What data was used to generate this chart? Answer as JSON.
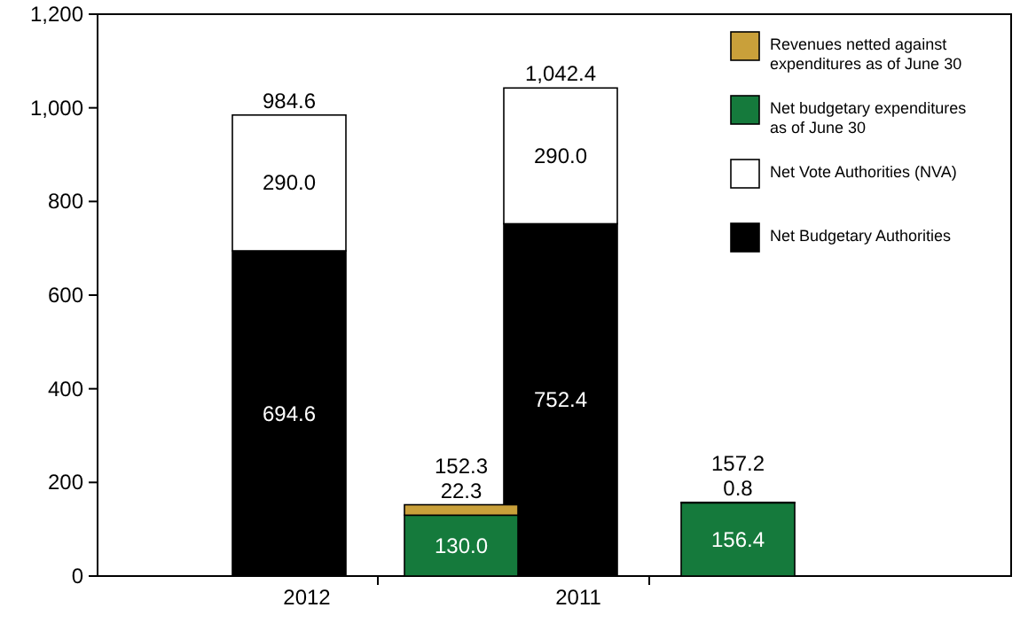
{
  "chart_data": {
    "type": "bar",
    "stacked": true,
    "categories": [
      "2012",
      null,
      "2011",
      null
    ],
    "series": [
      {
        "name": "Net Budgetary Authorities",
        "color": "#000000",
        "values": [
          694.6,
          null,
          752.4,
          null
        ],
        "value_labels": [
          "694.6",
          null,
          "752.4",
          null
        ]
      },
      {
        "name": "Net Vote Authorities (NVA)",
        "color": "#ffffff",
        "values": [
          290.0,
          null,
          290.0,
          null
        ],
        "value_labels": [
          "290.0",
          null,
          "290.0",
          null
        ]
      },
      {
        "name": "Net budgetary expenditures as of June 30",
        "color": "#157a3c",
        "values": [
          null,
          130.0,
          null,
          156.4
        ],
        "value_labels": [
          null,
          "130.0",
          null,
          "156.4"
        ]
      },
      {
        "name": "Revenues netted against expenditures as of June 30",
        "color": "#c9a03a",
        "values": [
          null,
          22.3,
          null,
          0.8
        ],
        "value_labels": [
          null,
          "22.3",
          null,
          "0.8"
        ]
      }
    ],
    "totals": [
      "984.6",
      "152.3",
      "1,042.4",
      "157.2"
    ],
    "ylim": [
      0,
      1200
    ],
    "yticks": [
      0,
      200,
      400,
      600,
      800,
      {
        "value": 1000,
        "label": "1,000"
      },
      {
        "value": 1200,
        "label": "1,200"
      }
    ],
    "grid": false,
    "legend": "top right"
  }
}
